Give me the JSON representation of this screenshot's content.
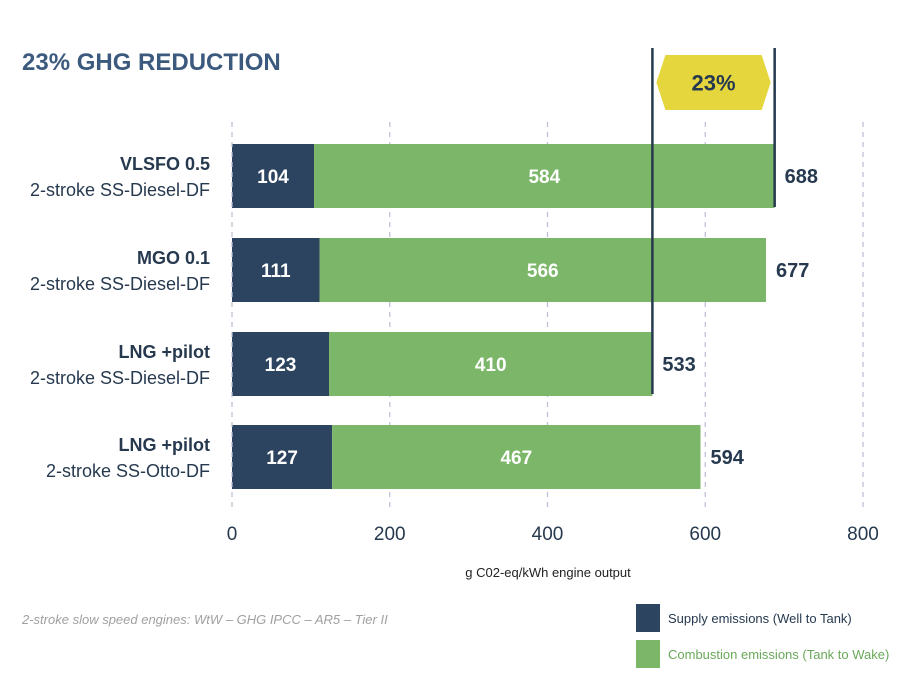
{
  "chart_data": {
    "type": "bar",
    "stacked": true,
    "orientation": "horizontal",
    "title": "23% GHG REDUCTION",
    "categories": [
      {
        "line1": "VLSFO 0.5",
        "line2": "2-stroke SS-Diesel-DF"
      },
      {
        "line1": "MGO 0.1",
        "line2": "2-stroke SS-Diesel-DF"
      },
      {
        "line1": "LNG +pilot",
        "line2": "2-stroke SS-Diesel-DF"
      },
      {
        "line1": "LNG +pilot",
        "line2": "2-stroke SS-Otto-DF"
      }
    ],
    "series": [
      {
        "name": "Supply emissions (Well to Tank)",
        "color": "#2d4461",
        "values": [
          104,
          111,
          123,
          127
        ]
      },
      {
        "name": "Combustion emissions (Tank to Wake)",
        "color": "#7cb668",
        "values": [
          584,
          566,
          410,
          467
        ]
      }
    ],
    "totals": [
      688,
      677,
      533,
      594
    ],
    "xlabel": "g C02-eq/kWh engine output",
    "xlim": [
      0,
      800
    ],
    "xticks": [
      0,
      200,
      400,
      600,
      800
    ],
    "grid": true,
    "annotation": {
      "label": "23%",
      "from": 533,
      "to": 688,
      "color": "#e6d63e"
    },
    "footnote": "2-stroke slow speed engines: WtW – GHG IPCC – AR5 – Tier II",
    "legend_position": "bottom-right"
  }
}
